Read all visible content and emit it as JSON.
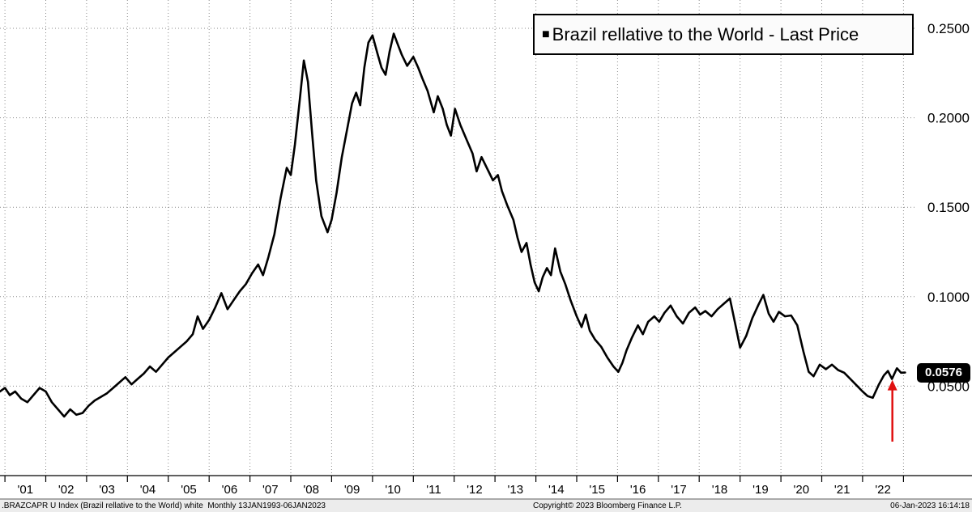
{
  "chart_data": {
    "type": "line",
    "title": "",
    "legend": [
      {
        "marker": "■",
        "label": "Brazil rellative to the World - Last Price"
      }
    ],
    "line_color": "#000000",
    "grid_color": "#8a8a8a",
    "grid": "dotted",
    "legend_position": "top-right",
    "x_range": [
      2000.88,
      2023.33
    ],
    "y_range": [
      0,
      0.2658
    ],
    "y_ticks": [
      {
        "value": 0.05,
        "label": "0.0500"
      },
      {
        "value": 0.1,
        "label": "0.1000"
      },
      {
        "value": 0.15,
        "label": "0.1500"
      },
      {
        "value": 0.2,
        "label": "0.2000"
      },
      {
        "value": 0.25,
        "label": "0.2500"
      }
    ],
    "x_ticks": [
      {
        "year": 2001,
        "label": "'01"
      },
      {
        "year": 2002,
        "label": "'02"
      },
      {
        "year": 2003,
        "label": "'03"
      },
      {
        "year": 2004,
        "label": "'04"
      },
      {
        "year": 2005,
        "label": "'05"
      },
      {
        "year": 2006,
        "label": "'06"
      },
      {
        "year": 2007,
        "label": "'07"
      },
      {
        "year": 2008,
        "label": "'08"
      },
      {
        "year": 2009,
        "label": "'09"
      },
      {
        "year": 2010,
        "label": "'10"
      },
      {
        "year": 2011,
        "label": "'11"
      },
      {
        "year": 2012,
        "label": "'12"
      },
      {
        "year": 2013,
        "label": "'13"
      },
      {
        "year": 2014,
        "label": "'14"
      },
      {
        "year": 2015,
        "label": "'15"
      },
      {
        "year": 2016,
        "label": "'16"
      },
      {
        "year": 2017,
        "label": "'17"
      },
      {
        "year": 2018,
        "label": "'18"
      },
      {
        "year": 2019,
        "label": "'19"
      },
      {
        "year": 2020,
        "label": "'20"
      },
      {
        "year": 2021,
        "label": "'21"
      },
      {
        "year": 2022,
        "label": "'22"
      }
    ],
    "last_price": {
      "value": 0.0576,
      "label": "0.0576",
      "badge_bg": "#000000",
      "badge_fg": "#ffffff"
    },
    "annotation_arrow": {
      "x": 2022.73,
      "y_from": 0.019,
      "y_to": 0.0535,
      "color": "#e01010"
    },
    "series": [
      {
        "name": "Brazil rellative to the World - Last Price",
        "points": [
          [
            2000.88,
            0.047
          ],
          [
            2001.0,
            0.049
          ],
          [
            2001.12,
            0.045
          ],
          [
            2001.25,
            0.047
          ],
          [
            2001.4,
            0.043
          ],
          [
            2001.55,
            0.041
          ],
          [
            2001.7,
            0.045
          ],
          [
            2001.85,
            0.049
          ],
          [
            2002.0,
            0.047
          ],
          [
            2002.15,
            0.041
          ],
          [
            2002.3,
            0.037
          ],
          [
            2002.45,
            0.033
          ],
          [
            2002.6,
            0.037
          ],
          [
            2002.75,
            0.034
          ],
          [
            2002.9,
            0.035
          ],
          [
            2003.05,
            0.039
          ],
          [
            2003.2,
            0.042
          ],
          [
            2003.35,
            0.044
          ],
          [
            2003.5,
            0.046
          ],
          [
            2003.65,
            0.049
          ],
          [
            2003.8,
            0.052
          ],
          [
            2003.95,
            0.055
          ],
          [
            2004.1,
            0.051
          ],
          [
            2004.25,
            0.054
          ],
          [
            2004.4,
            0.057
          ],
          [
            2004.55,
            0.061
          ],
          [
            2004.7,
            0.058
          ],
          [
            2004.85,
            0.062
          ],
          [
            2005.0,
            0.066
          ],
          [
            2005.15,
            0.069
          ],
          [
            2005.3,
            0.072
          ],
          [
            2005.45,
            0.075
          ],
          [
            2005.6,
            0.079
          ],
          [
            2005.72,
            0.089
          ],
          [
            2005.85,
            0.082
          ],
          [
            2006.0,
            0.087
          ],
          [
            2006.15,
            0.094
          ],
          [
            2006.3,
            0.102
          ],
          [
            2006.45,
            0.093
          ],
          [
            2006.6,
            0.098
          ],
          [
            2006.75,
            0.103
          ],
          [
            2006.9,
            0.107
          ],
          [
            2007.05,
            0.113
          ],
          [
            2007.2,
            0.118
          ],
          [
            2007.32,
            0.112
          ],
          [
            2007.45,
            0.122
          ],
          [
            2007.6,
            0.135
          ],
          [
            2007.75,
            0.155
          ],
          [
            2007.9,
            0.172
          ],
          [
            2008.0,
            0.168
          ],
          [
            2008.1,
            0.185
          ],
          [
            2008.22,
            0.21
          ],
          [
            2008.32,
            0.232
          ],
          [
            2008.42,
            0.22
          ],
          [
            2008.52,
            0.192
          ],
          [
            2008.62,
            0.165
          ],
          [
            2008.75,
            0.145
          ],
          [
            2008.9,
            0.136
          ],
          [
            2009.0,
            0.143
          ],
          [
            2009.12,
            0.158
          ],
          [
            2009.25,
            0.178
          ],
          [
            2009.4,
            0.196
          ],
          [
            2009.5,
            0.208
          ],
          [
            2009.6,
            0.214
          ],
          [
            2009.7,
            0.207
          ],
          [
            2009.8,
            0.228
          ],
          [
            2009.9,
            0.242
          ],
          [
            2010.0,
            0.246
          ],
          [
            2010.12,
            0.236
          ],
          [
            2010.22,
            0.228
          ],
          [
            2010.32,
            0.224
          ],
          [
            2010.42,
            0.237
          ],
          [
            2010.52,
            0.247
          ],
          [
            2010.62,
            0.241
          ],
          [
            2010.72,
            0.235
          ],
          [
            2010.85,
            0.229
          ],
          [
            2011.0,
            0.234
          ],
          [
            2011.12,
            0.228
          ],
          [
            2011.22,
            0.222
          ],
          [
            2011.35,
            0.215
          ],
          [
            2011.5,
            0.203
          ],
          [
            2011.6,
            0.212
          ],
          [
            2011.72,
            0.205
          ],
          [
            2011.82,
            0.196
          ],
          [
            2011.92,
            0.19
          ],
          [
            2012.02,
            0.205
          ],
          [
            2012.15,
            0.196
          ],
          [
            2012.3,
            0.188
          ],
          [
            2012.45,
            0.18
          ],
          [
            2012.55,
            0.17
          ],
          [
            2012.67,
            0.178
          ],
          [
            2012.8,
            0.172
          ],
          [
            2012.95,
            0.165
          ],
          [
            2013.07,
            0.168
          ],
          [
            2013.17,
            0.159
          ],
          [
            2013.3,
            0.151
          ],
          [
            2013.45,
            0.143
          ],
          [
            2013.55,
            0.133
          ],
          [
            2013.65,
            0.125
          ],
          [
            2013.77,
            0.13
          ],
          [
            2013.87,
            0.118
          ],
          [
            2013.97,
            0.108
          ],
          [
            2014.07,
            0.103
          ],
          [
            2014.17,
            0.111
          ],
          [
            2014.27,
            0.116
          ],
          [
            2014.37,
            0.112
          ],
          [
            2014.47,
            0.127
          ],
          [
            2014.6,
            0.114
          ],
          [
            2014.72,
            0.107
          ],
          [
            2014.85,
            0.098
          ],
          [
            2015.0,
            0.089
          ],
          [
            2015.12,
            0.083
          ],
          [
            2015.22,
            0.09
          ],
          [
            2015.32,
            0.081
          ],
          [
            2015.45,
            0.076
          ],
          [
            2015.6,
            0.072
          ],
          [
            2015.75,
            0.066
          ],
          [
            2015.9,
            0.061
          ],
          [
            2016.02,
            0.058
          ],
          [
            2016.12,
            0.063
          ],
          [
            2016.22,
            0.07
          ],
          [
            2016.35,
            0.077
          ],
          [
            2016.5,
            0.084
          ],
          [
            2016.62,
            0.079
          ],
          [
            2016.75,
            0.086
          ],
          [
            2016.9,
            0.089
          ],
          [
            2017.02,
            0.086
          ],
          [
            2017.15,
            0.091
          ],
          [
            2017.3,
            0.095
          ],
          [
            2017.45,
            0.089
          ],
          [
            2017.6,
            0.085
          ],
          [
            2017.75,
            0.091
          ],
          [
            2017.9,
            0.094
          ],
          [
            2018.02,
            0.09
          ],
          [
            2018.15,
            0.092
          ],
          [
            2018.3,
            0.089
          ],
          [
            2018.45,
            0.093
          ],
          [
            2018.6,
            0.096
          ],
          [
            2018.75,
            0.099
          ],
          [
            2018.88,
            0.085
          ],
          [
            2019.0,
            0.0715
          ],
          [
            2019.15,
            0.078
          ],
          [
            2019.3,
            0.088
          ],
          [
            2019.45,
            0.0955
          ],
          [
            2019.57,
            0.101
          ],
          [
            2019.7,
            0.0905
          ],
          [
            2019.82,
            0.086
          ],
          [
            2019.95,
            0.0915
          ],
          [
            2020.1,
            0.089
          ],
          [
            2020.25,
            0.0895
          ],
          [
            2020.4,
            0.084
          ],
          [
            2020.55,
            0.0695
          ],
          [
            2020.68,
            0.058
          ],
          [
            2020.8,
            0.0555
          ],
          [
            2020.95,
            0.062
          ],
          [
            2021.1,
            0.0595
          ],
          [
            2021.25,
            0.062
          ],
          [
            2021.4,
            0.059
          ],
          [
            2021.55,
            0.0575
          ],
          [
            2021.7,
            0.054
          ],
          [
            2021.85,
            0.0505
          ],
          [
            2022.0,
            0.047
          ],
          [
            2022.12,
            0.0445
          ],
          [
            2022.25,
            0.0435
          ],
          [
            2022.4,
            0.051
          ],
          [
            2022.52,
            0.056
          ],
          [
            2022.62,
            0.0585
          ],
          [
            2022.72,
            0.054
          ],
          [
            2022.84,
            0.06
          ],
          [
            2022.94,
            0.0575
          ],
          [
            2023.04,
            0.0576
          ]
        ]
      }
    ]
  },
  "footer": {
    "left": ".BRAZCAPR U Index (Brazil rellative to the World) white  Monthly 13JAN1993-06JAN2023",
    "center": "Copyright© 2023 Bloomberg Finance L.P.",
    "right": "06-Jan-2023 16:14:18"
  }
}
